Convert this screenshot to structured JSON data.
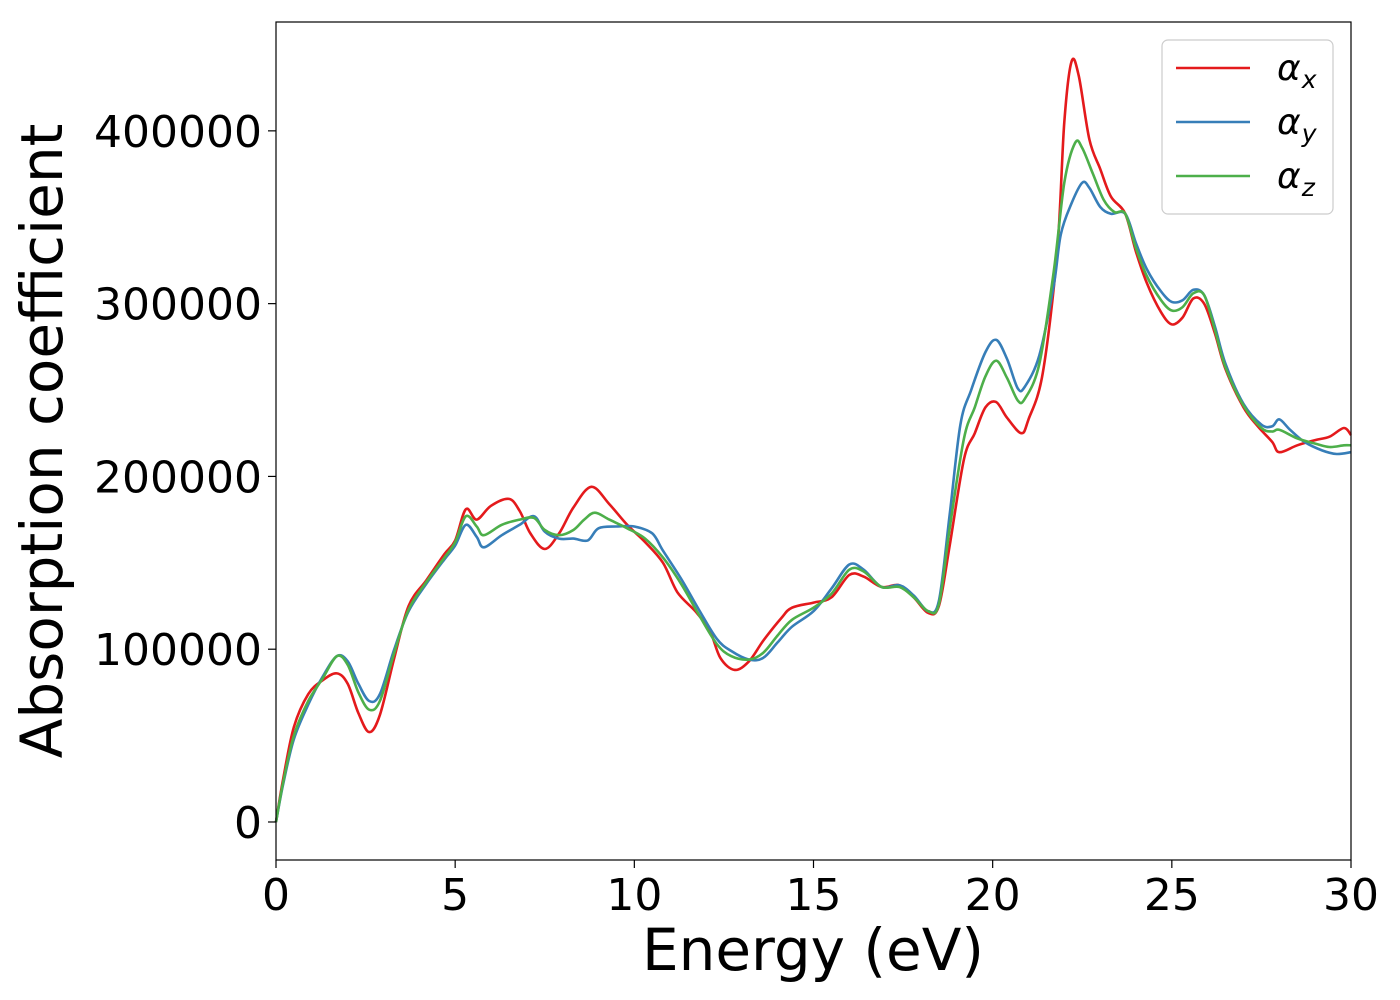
{
  "chart_data": {
    "type": "line",
    "title": "",
    "xlabel": "Energy (eV)",
    "ylabel": "Absorption coefficient",
    "xlim": [
      0,
      30
    ],
    "ylim": [
      -22000,
      463000
    ],
    "xticks": [
      0,
      5,
      10,
      15,
      20,
      25,
      30
    ],
    "xtick_labels": [
      "0",
      "5",
      "10",
      "15",
      "20",
      "25",
      "30"
    ],
    "yticks": [
      0,
      100000,
      200000,
      300000,
      400000
    ],
    "ytick_labels": [
      "0",
      "100000",
      "200000",
      "300000",
      "400000"
    ],
    "grid": false,
    "legend_position": "top-right",
    "series": [
      {
        "name": "α",
        "subscript": "x",
        "color": "#e41a1c",
        "points": [
          [
            0,
            0
          ],
          [
            0.2,
            25000
          ],
          [
            0.5,
            55000
          ],
          [
            0.9,
            74000
          ],
          [
            1.3,
            82000
          ],
          [
            1.7,
            86000
          ],
          [
            2.0,
            80000
          ],
          [
            2.3,
            63000
          ],
          [
            2.6,
            52000
          ],
          [
            2.9,
            62000
          ],
          [
            3.3,
            95000
          ],
          [
            3.7,
            125000
          ],
          [
            4.2,
            140000
          ],
          [
            4.7,
            155000
          ],
          [
            5.0,
            163000
          ],
          [
            5.3,
            181000
          ],
          [
            5.6,
            175000
          ],
          [
            6.0,
            183000
          ],
          [
            6.5,
            187000
          ],
          [
            6.8,
            180000
          ],
          [
            7.1,
            167000
          ],
          [
            7.5,
            158000
          ],
          [
            7.9,
            167000
          ],
          [
            8.3,
            182000
          ],
          [
            8.8,
            194000
          ],
          [
            9.3,
            184000
          ],
          [
            9.8,
            172000
          ],
          [
            10.3,
            162000
          ],
          [
            10.8,
            150000
          ],
          [
            11.2,
            133000
          ],
          [
            11.7,
            122000
          ],
          [
            12.1,
            111000
          ],
          [
            12.4,
            95000
          ],
          [
            12.8,
            88000
          ],
          [
            13.2,
            93000
          ],
          [
            13.6,
            105000
          ],
          [
            14.1,
            118000
          ],
          [
            14.4,
            124000
          ],
          [
            15.0,
            127000
          ],
          [
            15.5,
            130000
          ],
          [
            16.0,
            143000
          ],
          [
            16.4,
            142000
          ],
          [
            16.9,
            136000
          ],
          [
            17.4,
            137000
          ],
          [
            17.8,
            130000
          ],
          [
            18.2,
            121000
          ],
          [
            18.5,
            125000
          ],
          [
            18.8,
            160000
          ],
          [
            19.2,
            210000
          ],
          [
            19.5,
            225000
          ],
          [
            19.8,
            240000
          ],
          [
            20.1,
            243000
          ],
          [
            20.4,
            234000
          ],
          [
            20.8,
            225000
          ],
          [
            21.0,
            233000
          ],
          [
            21.4,
            260000
          ],
          [
            21.8,
            330000
          ],
          [
            22.0,
            405000
          ],
          [
            22.2,
            440000
          ],
          [
            22.4,
            432000
          ],
          [
            22.7,
            395000
          ],
          [
            23.0,
            378000
          ],
          [
            23.3,
            362000
          ],
          [
            23.7,
            352000
          ],
          [
            24.0,
            330000
          ],
          [
            24.3,
            312000
          ],
          [
            24.7,
            295000
          ],
          [
            25.0,
            288000
          ],
          [
            25.3,
            292000
          ],
          [
            25.6,
            303000
          ],
          [
            25.9,
            300000
          ],
          [
            26.2,
            283000
          ],
          [
            26.5,
            262000
          ],
          [
            27.0,
            240000
          ],
          [
            27.4,
            229000
          ],
          [
            27.8,
            220000
          ],
          [
            28.0,
            214000
          ],
          [
            28.5,
            218000
          ],
          [
            29.0,
            221000
          ],
          [
            29.4,
            223000
          ],
          [
            29.8,
            228000
          ],
          [
            30.0,
            224000
          ]
        ]
      },
      {
        "name": "α",
        "subscript": "y",
        "color": "#377eb8",
        "points": [
          [
            0,
            0
          ],
          [
            0.2,
            22000
          ],
          [
            0.5,
            48000
          ],
          [
            0.9,
            68000
          ],
          [
            1.3,
            84000
          ],
          [
            1.7,
            96000
          ],
          [
            2.0,
            93000
          ],
          [
            2.3,
            80000
          ],
          [
            2.6,
            70000
          ],
          [
            2.9,
            74000
          ],
          [
            3.3,
            100000
          ],
          [
            3.7,
            122000
          ],
          [
            4.2,
            138000
          ],
          [
            4.7,
            152000
          ],
          [
            5.0,
            160000
          ],
          [
            5.3,
            172000
          ],
          [
            5.6,
            165000
          ],
          [
            5.8,
            159000
          ],
          [
            6.3,
            166000
          ],
          [
            6.8,
            172000
          ],
          [
            7.2,
            177000
          ],
          [
            7.5,
            168000
          ],
          [
            7.9,
            164000
          ],
          [
            8.3,
            164000
          ],
          [
            8.7,
            163000
          ],
          [
            9.0,
            170000
          ],
          [
            9.5,
            171000
          ],
          [
            10.0,
            171000
          ],
          [
            10.5,
            167000
          ],
          [
            10.8,
            157000
          ],
          [
            11.3,
            141000
          ],
          [
            11.8,
            123000
          ],
          [
            12.3,
            106000
          ],
          [
            12.7,
            99000
          ],
          [
            13.2,
            94000
          ],
          [
            13.6,
            95000
          ],
          [
            14.0,
            104000
          ],
          [
            14.4,
            113000
          ],
          [
            15.0,
            122000
          ],
          [
            15.5,
            135000
          ],
          [
            16.0,
            149000
          ],
          [
            16.4,
            146000
          ],
          [
            16.9,
            136000
          ],
          [
            17.4,
            137000
          ],
          [
            17.8,
            131000
          ],
          [
            18.2,
            122000
          ],
          [
            18.5,
            128000
          ],
          [
            18.8,
            178000
          ],
          [
            19.1,
            230000
          ],
          [
            19.4,
            250000
          ],
          [
            19.8,
            272000
          ],
          [
            20.1,
            279000
          ],
          [
            20.4,
            268000
          ],
          [
            20.7,
            251000
          ],
          [
            20.9,
            252000
          ],
          [
            21.3,
            270000
          ],
          [
            21.7,
            310000
          ],
          [
            21.9,
            340000
          ],
          [
            22.2,
            358000
          ],
          [
            22.5,
            370000
          ],
          [
            22.7,
            367000
          ],
          [
            23.0,
            356000
          ],
          [
            23.3,
            352000
          ],
          [
            23.7,
            352000
          ],
          [
            24.0,
            335000
          ],
          [
            24.3,
            320000
          ],
          [
            24.7,
            307000
          ],
          [
            25.0,
            301000
          ],
          [
            25.3,
            302000
          ],
          [
            25.6,
            308000
          ],
          [
            25.9,
            305000
          ],
          [
            26.2,
            287000
          ],
          [
            26.5,
            265000
          ],
          [
            27.0,
            242000
          ],
          [
            27.5,
            230000
          ],
          [
            27.8,
            229000
          ],
          [
            28.0,
            233000
          ],
          [
            28.3,
            227000
          ],
          [
            28.7,
            220000
          ],
          [
            29.2,
            215000
          ],
          [
            29.6,
            213000
          ],
          [
            30.0,
            214000
          ]
        ]
      },
      {
        "name": "α",
        "subscript": "z",
        "color": "#4daf4a",
        "points": [
          [
            0,
            0
          ],
          [
            0.2,
            23000
          ],
          [
            0.5,
            50000
          ],
          [
            0.9,
            70000
          ],
          [
            1.3,
            83000
          ],
          [
            1.7,
            96000
          ],
          [
            2.0,
            91000
          ],
          [
            2.3,
            75000
          ],
          [
            2.6,
            65000
          ],
          [
            2.9,
            70000
          ],
          [
            3.3,
            98000
          ],
          [
            3.7,
            123000
          ],
          [
            4.2,
            139000
          ],
          [
            4.7,
            153000
          ],
          [
            5.0,
            162000
          ],
          [
            5.3,
            177000
          ],
          [
            5.6,
            171000
          ],
          [
            5.8,
            166000
          ],
          [
            6.3,
            172000
          ],
          [
            6.8,
            175000
          ],
          [
            7.2,
            176000
          ],
          [
            7.5,
            169000
          ],
          [
            7.9,
            166000
          ],
          [
            8.3,
            169000
          ],
          [
            8.6,
            175000
          ],
          [
            8.9,
            179000
          ],
          [
            9.3,
            175000
          ],
          [
            9.8,
            170000
          ],
          [
            10.3,
            164000
          ],
          [
            10.8,
            153000
          ],
          [
            11.3,
            138000
          ],
          [
            11.8,
            120000
          ],
          [
            12.3,
            103000
          ],
          [
            12.7,
            96000
          ],
          [
            13.2,
            94000
          ],
          [
            13.6,
            98000
          ],
          [
            14.0,
            108000
          ],
          [
            14.4,
            117000
          ],
          [
            15.0,
            124000
          ],
          [
            15.5,
            132000
          ],
          [
            16.0,
            146000
          ],
          [
            16.4,
            145000
          ],
          [
            16.9,
            136000
          ],
          [
            17.4,
            136000
          ],
          [
            17.8,
            130000
          ],
          [
            18.2,
            122000
          ],
          [
            18.5,
            126000
          ],
          [
            18.8,
            170000
          ],
          [
            19.2,
            222000
          ],
          [
            19.5,
            240000
          ],
          [
            19.8,
            258000
          ],
          [
            20.1,
            267000
          ],
          [
            20.4,
            257000
          ],
          [
            20.7,
            244000
          ],
          [
            20.9,
            245000
          ],
          [
            21.3,
            265000
          ],
          [
            21.7,
            318000
          ],
          [
            22.0,
            370000
          ],
          [
            22.3,
            393000
          ],
          [
            22.5,
            390000
          ],
          [
            22.8,
            375000
          ],
          [
            23.1,
            360000
          ],
          [
            23.4,
            353000
          ],
          [
            23.7,
            352000
          ],
          [
            24.0,
            332000
          ],
          [
            24.3,
            316000
          ],
          [
            24.7,
            302000
          ],
          [
            25.0,
            296000
          ],
          [
            25.3,
            298000
          ],
          [
            25.6,
            306000
          ],
          [
            25.9,
            305000
          ],
          [
            26.2,
            285000
          ],
          [
            26.5,
            263000
          ],
          [
            27.0,
            241000
          ],
          [
            27.5,
            228000
          ],
          [
            27.8,
            226000
          ],
          [
            28.0,
            227000
          ],
          [
            28.5,
            222000
          ],
          [
            29.0,
            219000
          ],
          [
            29.4,
            217000
          ],
          [
            29.8,
            218000
          ],
          [
            30.0,
            218000
          ]
        ]
      }
    ]
  }
}
